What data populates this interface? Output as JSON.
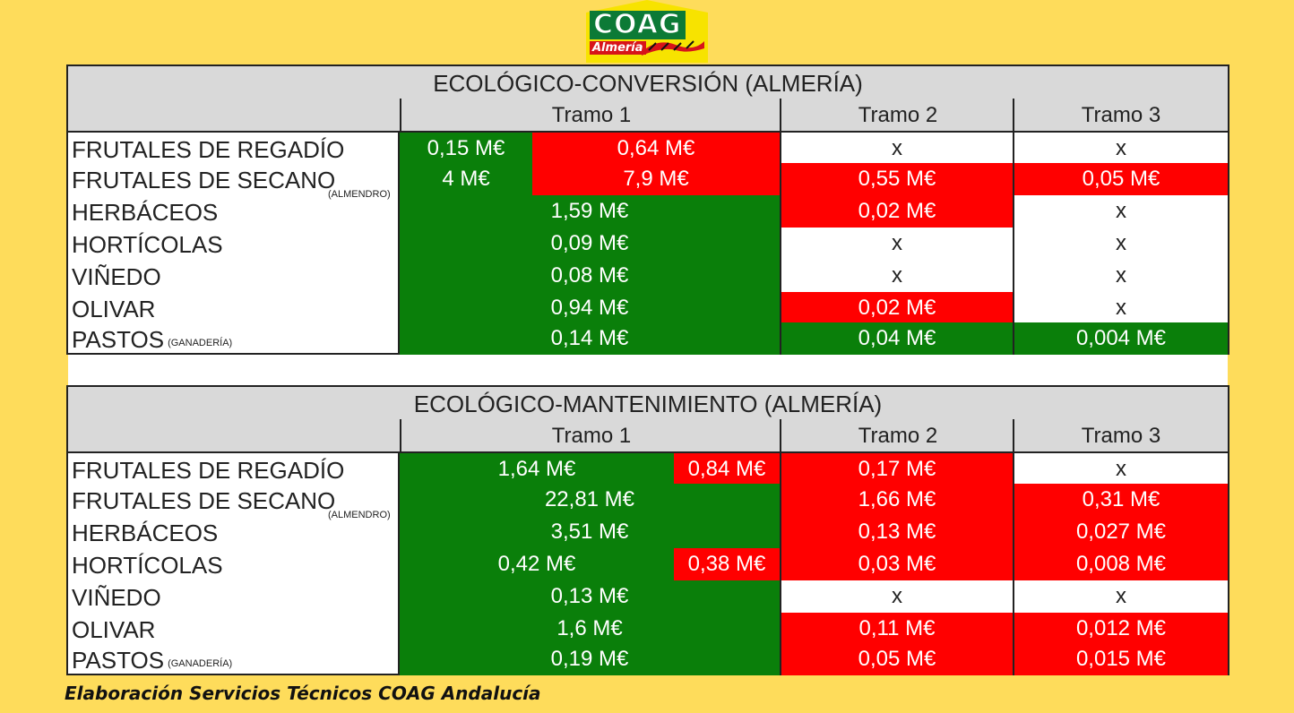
{
  "logo": {
    "text": "COAG",
    "sub": "Almería"
  },
  "tables": [
    {
      "title": "ECOLÓGICO-CONVERSIÓN (ALMERÍA)",
      "headers": [
        "Tramo 1",
        "Tramo 2",
        "Tramo 3"
      ],
      "rows": [
        {
          "label": "FRUTALES DE REGADÍO",
          "note": "",
          "t1a": "0,15 M€",
          "t1b": "0,64 M€",
          "t2": "x",
          "t3": "x"
        },
        {
          "label": "FRUTALES DE SECANO",
          "note": "(ALMENDRO)",
          "t1a": "4 M€",
          "t1b": "7,9 M€",
          "t2": "0,55 M€",
          "t3": "0,05 M€"
        },
        {
          "label": "HERBÁCEOS",
          "note": "",
          "t1": "1,59 M€",
          "t2": "0,02 M€",
          "t3": "x"
        },
        {
          "label": "HORTÍCOLAS",
          "note": "",
          "t1": "0,09 M€",
          "t2": "x",
          "t3": "x"
        },
        {
          "label": "VIÑEDO",
          "note": "",
          "t1": "0,08 M€",
          "t2": "x",
          "t3": "x"
        },
        {
          "label": "OLIVAR",
          "note": "",
          "t1": "0,94 M€",
          "t2": "0,02 M€",
          "t3": "x"
        },
        {
          "label": "PASTOS",
          "note": "(GANADERÍA)",
          "t1": "0,14 M€",
          "t2": "0,04 M€",
          "t3": "0,004 M€"
        }
      ]
    },
    {
      "title": "ECOLÓGICO-MANTENIMIENTO (ALMERÍA)",
      "headers": [
        "Tramo 1",
        "Tramo 2",
        "Tramo 3"
      ],
      "rows": [
        {
          "label": "FRUTALES DE REGADÍO",
          "note": "",
          "t1a": "1,64 M€",
          "t1b": "0,84 M€",
          "t2": "0,17 M€",
          "t3": "x"
        },
        {
          "label": "FRUTALES DE SECANO",
          "note": "(ALMENDRO)",
          "t1": "22,81 M€",
          "t2": "1,66 M€",
          "t3": "0,31 M€"
        },
        {
          "label": "HERBÁCEOS",
          "note": "",
          "t1": "3,51 M€",
          "t2": "0,13 M€",
          "t3": "0,027 M€"
        },
        {
          "label": "HORTÍCOLAS",
          "note": "",
          "t1a": "0,42 M€",
          "t1b": "0,38 M€",
          "t2": "0,03 M€",
          "t3": "0,008 M€"
        },
        {
          "label": "VIÑEDO",
          "note": "",
          "t1": "0,13 M€",
          "t2": "x",
          "t3": "x"
        },
        {
          "label": "OLIVAR",
          "note": "",
          "t1": "1,6 M€",
          "t2": "0,11 M€",
          "t3": "0,012 M€"
        },
        {
          "label": "PASTOS",
          "note": "(GANADERÍA)",
          "t1": "0,19 M€",
          "t2": "0,05 M€",
          "t3": "0,015 M€"
        }
      ]
    }
  ],
  "colors": {
    "green": "#0a7f0a",
    "red": "#ff0000",
    "white": "#ffffff",
    "background": "#fedc5b",
    "header": "#d9d9d9"
  },
  "footer": "Elaboración Servicios Técnicos COAG Andalucía"
}
